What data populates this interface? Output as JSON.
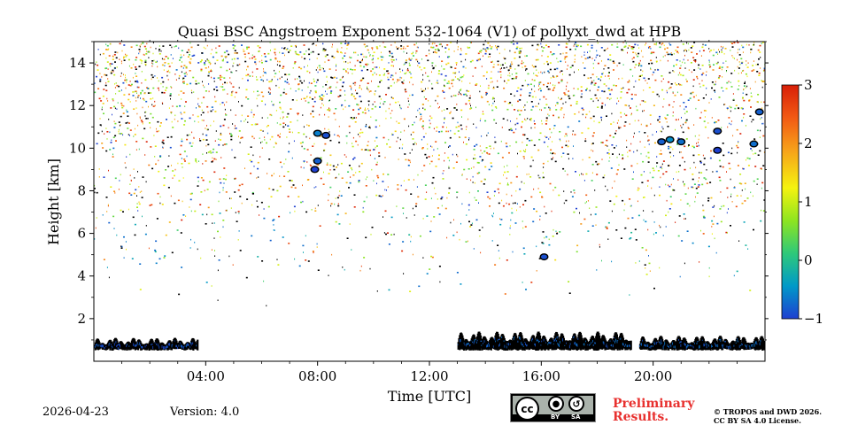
{
  "chart_data": {
    "type": "heatmap",
    "title": "Quasi BSC Angstroem Exponent 532-1064 (V1) of pollyxt_dwd at HPB",
    "xlabel": "Time [UTC]",
    "ylabel": "Height [km]",
    "xlim_hours": [
      0,
      24
    ],
    "ylim_km": [
      0,
      15
    ],
    "x_ticks": [
      {
        "hour": 4,
        "label": "04:00"
      },
      {
        "hour": 8,
        "label": "08:00"
      },
      {
        "hour": 12,
        "label": "12:00"
      },
      {
        "hour": 16,
        "label": "16:00"
      },
      {
        "hour": 20,
        "label": "20:00"
      }
    ],
    "y_ticks": [
      {
        "km": 2,
        "label": "2"
      },
      {
        "km": 4,
        "label": "4"
      },
      {
        "km": 6,
        "label": "6"
      },
      {
        "km": 8,
        "label": "8"
      },
      {
        "km": 10,
        "label": "10"
      },
      {
        "km": 12,
        "label": "12"
      },
      {
        "km": 14,
        "label": "14"
      }
    ],
    "colorbar": {
      "min": -1,
      "max": 3,
      "ticks": [
        {
          "value": -1,
          "label": "−1"
        },
        {
          "value": 0,
          "label": "0"
        },
        {
          "value": 1,
          "label": "1"
        },
        {
          "value": 2,
          "label": "2"
        },
        {
          "value": 3,
          "label": "3"
        }
      ],
      "colors": [
        "#1f3fd1",
        "#0099c8",
        "#2ec97a",
        "#8ee520",
        "#f5f30f",
        "#f7a21a",
        "#f25a14",
        "#d81f08"
      ]
    },
    "features": [
      {
        "kind": "layer",
        "name": "low cloud 00-03 UTC",
        "t0": 0.0,
        "t1": 3.7,
        "h0": 0.5,
        "h1": 1.1,
        "value": -1.0
      },
      {
        "kind": "layer",
        "name": "low cloud 13-19 UTC",
        "t0": 13.0,
        "t1": 19.2,
        "h0": 0.5,
        "h1": 1.4,
        "value": -0.9
      },
      {
        "kind": "layer",
        "name": "low cloud 19.5-24 UTC",
        "t0": 19.5,
        "t1": 24.0,
        "h0": 0.5,
        "h1": 1.2,
        "value": -0.9
      },
      {
        "kind": "blob",
        "t": 7.9,
        "h": 9.0,
        "value": -1.0
      },
      {
        "kind": "blob",
        "t": 8.0,
        "h": 9.4,
        "value": -0.8
      },
      {
        "kind": "blob",
        "t": 8.0,
        "h": 10.7,
        "value": -0.6
      },
      {
        "kind": "blob",
        "t": 8.3,
        "h": 10.6,
        "value": -0.9
      },
      {
        "kind": "blob",
        "t": 16.1,
        "h": 4.9,
        "value": -0.9
      },
      {
        "kind": "blob",
        "t": 20.3,
        "h": 10.3,
        "value": -0.8
      },
      {
        "kind": "blob",
        "t": 20.6,
        "h": 10.4,
        "value": -0.5
      },
      {
        "kind": "blob",
        "t": 21.0,
        "h": 10.3,
        "value": -0.7
      },
      {
        "kind": "blob",
        "t": 22.3,
        "h": 10.8,
        "value": -0.9
      },
      {
        "kind": "blob",
        "t": 22.3,
        "h": 9.9,
        "value": -1.0
      },
      {
        "kind": "blob",
        "t": 23.6,
        "h": 10.2,
        "value": -0.7
      },
      {
        "kind": "blob",
        "t": 23.8,
        "h": 11.7,
        "value": -0.8
      }
    ],
    "noise_region_km": [
      2.5,
      15.0
    ]
  },
  "footer": {
    "date": "2026-04-23",
    "version": "Version: 4.0",
    "preliminary_line1": "Preliminary",
    "preliminary_line2": "Results.",
    "copyright_line1": "© TROPOS and DWD 2026.",
    "copyright_line2": "CC BY SA 4.0 License.",
    "license_badge": {
      "cc": "cc",
      "by": "BY",
      "sa": "SA"
    }
  }
}
